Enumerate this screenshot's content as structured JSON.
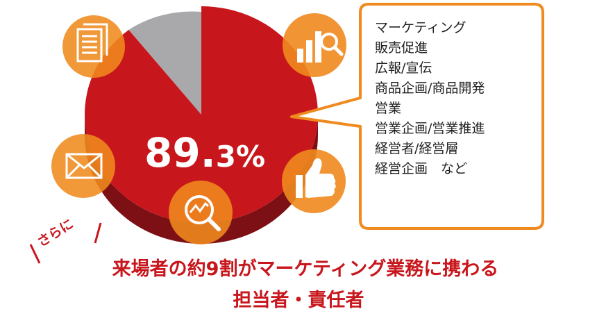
{
  "chart_data": {
    "type": "pie",
    "categories": [
      "",
      ""
    ],
    "values": [
      89.3,
      10.7
    ],
    "value_label": "89.3%",
    "value_label_main": "89.",
    "value_label_small": "3%",
    "colors": {
      "main": "#c8161d",
      "main_dark": "#7d1014",
      "rest": "#a9a9ab",
      "rest_dark": "#7f7f81",
      "icon": "#ef8a1e",
      "callout_border": "#ef8a1e"
    }
  },
  "icons": [
    "document-icon",
    "chart-magnifier-icon",
    "envelope-icon",
    "thumbs-up-icon",
    "trend-magnifier-icon"
  ],
  "callout": {
    "items": [
      "マーケティング",
      "販売促進",
      "広報/宣伝",
      "商品企画/商品開発",
      "営業",
      "営業企画/営業推進",
      "経営者/経営層",
      "経営企画　など"
    ]
  },
  "tagline": "さらに",
  "headline": {
    "line1": "来場者の約9割がマーケティング業務に携わる",
    "line2": "担当者・責任者"
  }
}
